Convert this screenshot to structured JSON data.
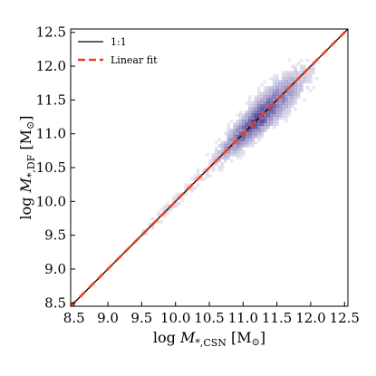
{
  "chart_data": {
    "type": "heatmap",
    "title": "",
    "xlabel": {
      "prefix": "log ",
      "symbol": "M",
      "subscript": "*,CSN",
      "unit": " [M",
      "unit_sub": "⊙",
      "unit_close": "]"
    },
    "ylabel": {
      "prefix": "log ",
      "symbol": "M",
      "subscript": "*,DF",
      "unit": " [M",
      "unit_sub": "⊙",
      "unit_close": "]"
    },
    "xlim": [
      8.45,
      12.55
    ],
    "ylim": [
      8.45,
      12.55
    ],
    "xticks": [
      "8.5",
      "9.0",
      "9.5",
      "10.0",
      "10.5",
      "11.0",
      "11.5",
      "12.0",
      "12.5"
    ],
    "yticks": [
      "8.5",
      "9.0",
      "9.5",
      "10.0",
      "10.5",
      "11.0",
      "11.5",
      "12.0",
      "12.5"
    ],
    "density_core": {
      "x_center": 11.2,
      "y_center": 11.2,
      "x_range": [
        9.5,
        12.1
      ],
      "y_range": [
        9.5,
        12.1
      ]
    },
    "legend": {
      "placement": "top-left",
      "entries": [
        {
          "label": "1:1",
          "color": "#000000",
          "style": "solid"
        },
        {
          "label": "Linear fit",
          "color": "#f03c19",
          "style": "dashed"
        }
      ]
    },
    "series": [
      {
        "name": "1:1",
        "x": [
          8.45,
          12.55
        ],
        "y": [
          8.45,
          12.55
        ]
      },
      {
        "name": "Linear fit",
        "x": [
          8.45,
          12.55
        ],
        "y": [
          8.45,
          12.55
        ]
      }
    ],
    "colors": {
      "density": "#3a2d8f",
      "one_to_one": "#000000",
      "fit": "#f03c19"
    },
    "grid": false
  }
}
